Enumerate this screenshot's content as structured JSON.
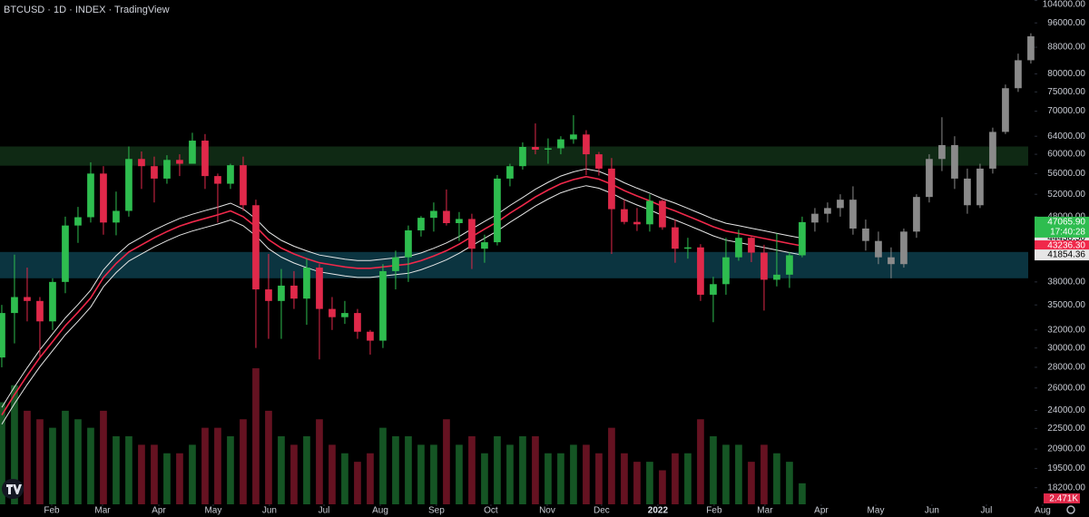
{
  "chart_data": {
    "type": "candlestick",
    "title": "BTCUSD · 1D · INDEX · TradingView",
    "log_scale": true,
    "xlim": [
      0.36,
      81.79
    ],
    "xticks": [
      {
        "value": 4.43,
        "label": "Feb"
      },
      {
        "value": 8.43,
        "label": "Mar"
      },
      {
        "value": 12.86,
        "label": "Apr"
      },
      {
        "value": 17.14,
        "label": "May"
      },
      {
        "value": 21.57,
        "label": "Jun"
      },
      {
        "value": 25.86,
        "label": "Jul"
      },
      {
        "value": 30.29,
        "label": "Aug"
      },
      {
        "value": 34.71,
        "label": "Sep"
      },
      {
        "value": 39,
        "label": "Oct"
      },
      {
        "value": 43.43,
        "label": "Nov"
      },
      {
        "value": 47.71,
        "label": "Dec"
      },
      {
        "value": 52.14,
        "label": "2022"
      },
      {
        "value": 56.57,
        "label": "Feb"
      },
      {
        "value": 60.57,
        "label": "Mar"
      },
      {
        "value": 65,
        "label": "Apr"
      },
      {
        "value": 69.29,
        "label": "May"
      },
      {
        "value": 73.71,
        "label": "Jun"
      },
      {
        "value": 78,
        "label": "Jul"
      },
      {
        "value": 82.43,
        "label": "Aug"
      }
    ],
    "ylim": [
      17150,
      104200
    ],
    "yticks": [
      {
        "value": 104000,
        "label": "104000.00"
      },
      {
        "value": 96000,
        "label": "96000.00"
      },
      {
        "value": 88000,
        "label": "88000.00"
      },
      {
        "value": 80000,
        "label": "80000.00"
      },
      {
        "value": 75000,
        "label": "75000.00"
      },
      {
        "value": 70000,
        "label": "70000.00"
      },
      {
        "value": 64000,
        "label": "64000.00"
      },
      {
        "value": 60000,
        "label": "60000.00"
      },
      {
        "value": 56000,
        "label": "56000.00"
      },
      {
        "value": 52000,
        "label": "52000.00"
      },
      {
        "value": 48000,
        "label": "48000.00"
      },
      {
        "value": 38000,
        "label": "38000.00"
      },
      {
        "value": 35000,
        "label": "35000.00"
      },
      {
        "value": 32000,
        "label": "32000.00"
      },
      {
        "value": 30000,
        "label": "30000.00"
      },
      {
        "value": 28000,
        "label": "28000.00"
      },
      {
        "value": 26000,
        "label": "26000.00"
      },
      {
        "value": 24000,
        "label": "24000.00"
      },
      {
        "value": 22500,
        "label": "22500.00"
      },
      {
        "value": 20900,
        "label": "20900.00"
      },
      {
        "value": 19500,
        "label": "19500.00"
      },
      {
        "value": 18200,
        "label": "18200.00"
      }
    ],
    "zones": [
      {
        "low": 57600,
        "high": 61700,
        "color": "#0f2914"
      },
      {
        "low": 38500,
        "high": 42300,
        "color": "#0b3440"
      }
    ],
    "candles": {
      "up_color": "#2ebd4f",
      "down_color": "#e0294a",
      "last_label": "47065.90",
      "countdown": "17:40:28",
      "open": [
        29000,
        34000,
        36000,
        35500,
        33000,
        38000,
        46500,
        47900,
        56000,
        47000,
        49000,
        59000,
        57500,
        55000,
        58800,
        58000,
        63000,
        55500,
        54000,
        57700,
        50000,
        37000,
        35500,
        37500,
        35800,
        40000,
        34500,
        33500,
        34000,
        31800,
        30800,
        39500,
        41500,
        45700,
        47800,
        49000,
        46900,
        47600,
        42800,
        43800,
        55000,
        57500,
        61600,
        61000,
        61300,
        63300,
        64400,
        60000,
        57000,
        49300,
        47100,
        46700,
        50800,
        46200,
        42800,
        43000,
        36300,
        37700,
        41500,
        44500,
        42200,
        38300,
        39000,
        41800
      ],
      "high": [
        35000,
        41900,
        40000,
        36000,
        38500,
        48000,
        49700,
        58300,
        57500,
        52500,
        61700,
        60600,
        59500,
        59800,
        60000,
        64800,
        64500,
        56000,
        58000,
        59500,
        51000,
        42000,
        39800,
        39500,
        41300,
        40500,
        36000,
        35500,
        34500,
        32000,
        40500,
        42500,
        46500,
        48100,
        50500,
        52900,
        48800,
        48500,
        45000,
        55700,
        58000,
        62600,
        67000,
        63500,
        64000,
        69000,
        65400,
        60500,
        59200,
        51000,
        49500,
        52000,
        51000,
        47500,
        44500,
        43500,
        38700,
        44500,
        45800,
        44800,
        43400,
        45200,
        42300,
        48000
      ],
      "low": [
        28000,
        30500,
        33000,
        29000,
        32000,
        36500,
        43700,
        47000,
        45000,
        44900,
        48000,
        53000,
        50500,
        54000,
        55500,
        59000,
        53000,
        47000,
        53000,
        49000,
        30000,
        31000,
        31000,
        34500,
        32600,
        28800,
        32000,
        32700,
        31000,
        29300,
        30000,
        37000,
        38000,
        44700,
        45500,
        46500,
        44000,
        39800,
        40700,
        43300,
        53500,
        56800,
        60000,
        58000,
        60000,
        62300,
        55700,
        55600,
        42000,
        46700,
        45600,
        45500,
        45800,
        40700,
        41300,
        35500,
        32900,
        36300,
        41000,
        40800,
        34300,
        37400,
        37200,
        41500
      ],
      "close": [
        34000,
        36000,
        35500,
        33000,
        38000,
        46500,
        47900,
        56000,
        47000,
        49000,
        59000,
        57500,
        55000,
        58800,
        58000,
        63000,
        55500,
        54000,
        57700,
        50000,
        37000,
        35500,
        37500,
        35800,
        40000,
        34500,
        33500,
        34000,
        31800,
        30800,
        39500,
        41500,
        45700,
        47800,
        49000,
        46900,
        47600,
        42800,
        43800,
        55000,
        57500,
        61600,
        61000,
        61300,
        63300,
        64400,
        60000,
        57000,
        49300,
        47100,
        46700,
        50800,
        46200,
        42800,
        43000,
        36300,
        37700,
        41500,
        44500,
        42200,
        38300,
        39000,
        41800,
        47065.9
      ]
    },
    "projection": {
      "color": "#8a8a8a",
      "open": [
        47000,
        48500,
        49500,
        51000,
        46000,
        44000,
        41500,
        40500,
        45500,
        51500,
        59000,
        62000,
        55000,
        50000,
        57000,
        65000,
        76000,
        84000
      ],
      "high": [
        49500,
        50500,
        52000,
        53500,
        47500,
        45500,
        43000,
        46000,
        52000,
        60000,
        68500,
        64000,
        57000,
        58000,
        66000,
        77000,
        86000,
        92500
      ],
      "low": [
        45500,
        47000,
        48000,
        45000,
        42500,
        40500,
        38500,
        40000,
        44500,
        50500,
        56500,
        53000,
        48500,
        49500,
        56000,
        64500,
        75000,
        83000
      ],
      "close": [
        48500,
        49500,
        51000,
        46000,
        44000,
        41500,
        40500,
        45500,
        51500,
        59000,
        62000,
        55000,
        50000,
        57000,
        65000,
        76000,
        84000,
        91500
      ]
    },
    "volume": {
      "values": [
        12,
        14,
        11,
        10,
        9,
        11,
        10,
        9,
        11,
        8,
        8,
        7,
        7,
        6,
        6,
        7,
        9,
        9,
        8,
        10,
        16,
        11,
        8,
        7,
        8,
        10,
        7,
        6,
        5,
        6,
        9,
        8,
        8,
        7,
        7,
        10,
        7,
        8,
        6,
        8,
        7,
        8,
        8,
        6,
        6,
        7,
        7,
        6,
        9,
        6,
        5,
        5,
        4,
        6,
        6,
        10,
        8,
        7,
        7,
        5,
        7,
        6,
        5,
        2.471
      ],
      "value_labels": [
        null,
        null,
        null,
        null,
        null,
        null,
        null,
        null,
        null,
        null,
        null,
        null,
        null,
        null,
        null,
        null,
        null,
        null,
        null,
        null,
        null,
        null,
        null,
        null,
        null,
        null,
        null,
        null,
        null,
        null,
        null,
        null,
        null,
        null,
        null,
        null,
        null,
        null,
        null,
        null,
        null,
        null,
        null,
        null,
        null,
        null,
        null,
        null,
        null,
        null,
        null,
        null,
        null,
        null,
        null,
        null,
        null,
        null,
        null,
        null,
        null,
        null,
        null,
        "2.471K"
      ]
    },
    "series": [
      {
        "color": "#e6e6e6",
        "last_label": "44438.50",
        "values": [
          24260,
          26110,
          27960,
          29810,
          31560,
          33410,
          35050,
          36910,
          39680,
          41740,
          43480,
          44620,
          45750,
          46770,
          47700,
          48420,
          49040,
          49650,
          50370,
          49340,
          47600,
          45440,
          44100,
          43180,
          42460,
          41840,
          41530,
          41220,
          41020,
          41020,
          41220,
          41430,
          41630,
          42150,
          42870,
          43690,
          44720,
          45950,
          47190,
          48420,
          49960,
          51400,
          52940,
          54280,
          55510,
          56330,
          56950,
          56440,
          55410,
          54180,
          53150,
          52220,
          51190,
          50370,
          49450,
          48520,
          47600,
          46880,
          46470,
          46050,
          45640,
          45230,
          44820,
          44438.5
        ]
      },
      {
        "color": "#f0284a",
        "last_label": "43236.30",
        "values": [
          23600,
          25400,
          27200,
          29000,
          30700,
          32500,
          34100,
          35900,
          38600,
          40600,
          42300,
          43400,
          44500,
          45500,
          46400,
          47100,
          47700,
          48300,
          49000,
          48000,
          46300,
          44200,
          42900,
          42000,
          41300,
          40700,
          40400,
          40100,
          39900,
          39900,
          40100,
          40300,
          40500,
          41000,
          41700,
          42500,
          43500,
          44700,
          45900,
          47100,
          48600,
          50000,
          51500,
          52800,
          54000,
          54800,
          55400,
          54900,
          53900,
          52700,
          51700,
          50800,
          49800,
          49000,
          48100,
          47200,
          46300,
          45600,
          45200,
          44800,
          44400,
          44000,
          43600,
          43236.3
        ]
      },
      {
        "color": "#e6e6e6",
        "last_label": "41854.36",
        "values": [
          22840,
          24590,
          26330,
          28070,
          29720,
          31460,
          33010,
          34750,
          37360,
          39300,
          40950,
          42010,
          43080,
          44040,
          44920,
          45590,
          46170,
          46750,
          47430,
          46460,
          44820,
          42790,
          41530,
          40660,
          39980,
          39400,
          39110,
          38820,
          38620,
          38620,
          38820,
          39010,
          39200,
          39690,
          40370,
          41140,
          42110,
          43270,
          44430,
          45590,
          47040,
          48400,
          49850,
          51110,
          52270,
          53050,
          53630,
          53140,
          52180,
          51010,
          50050,
          49170,
          48210,
          47430,
          46560,
          45690,
          44820,
          44140,
          43750,
          43370,
          42980,
          42590,
          42200,
          41854.36
        ]
      }
    ]
  }
}
